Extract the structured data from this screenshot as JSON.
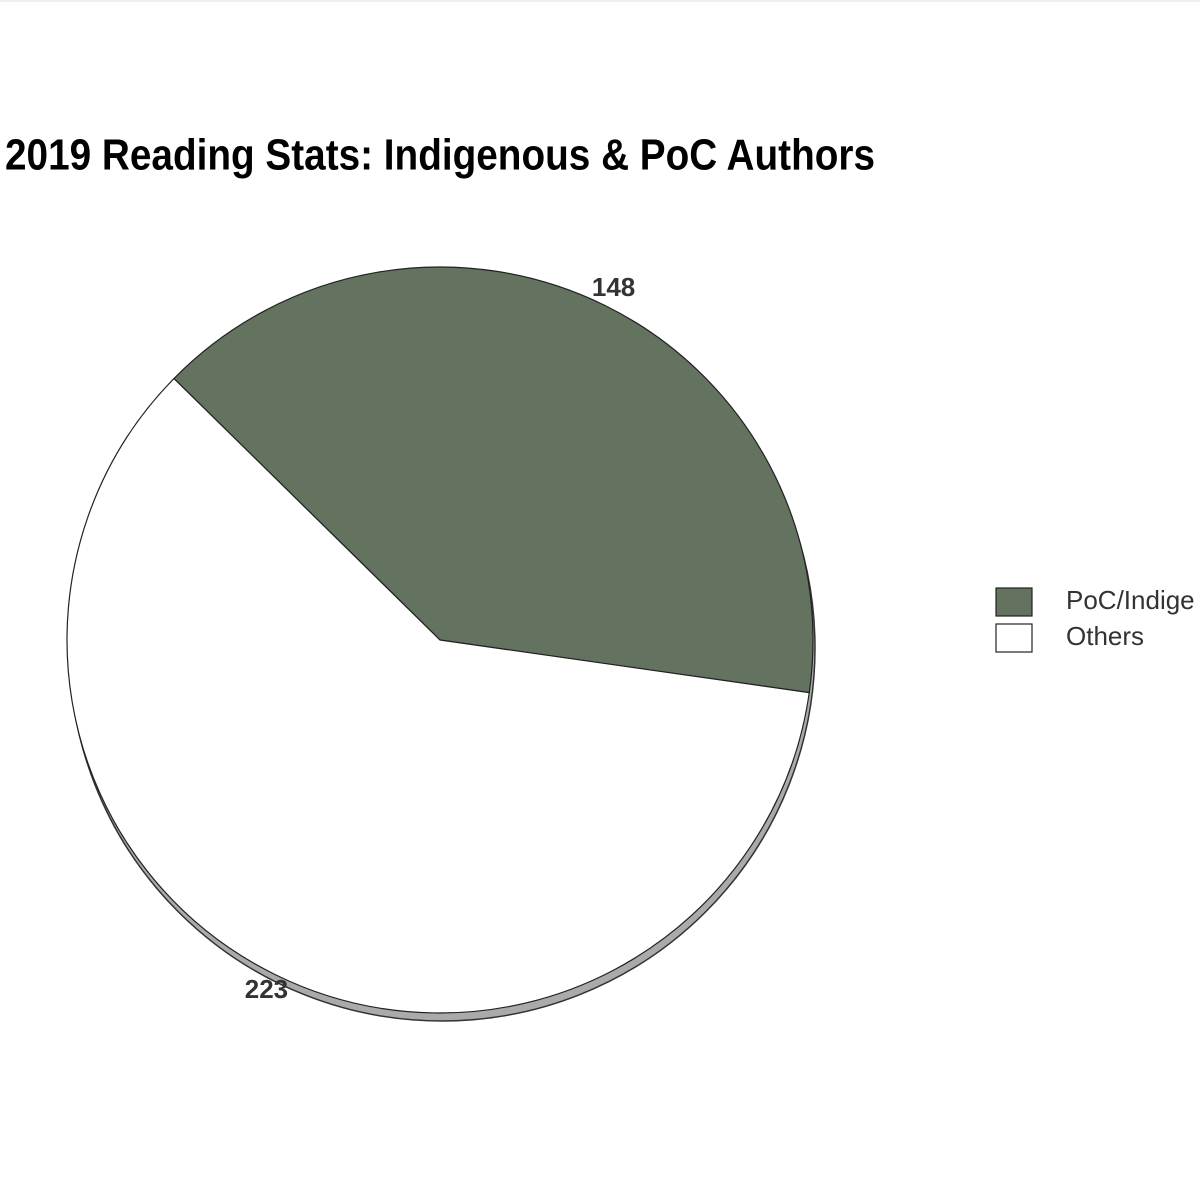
{
  "chart_data": {
    "type": "pie",
    "title": "2019 Reading Stats: Indigenous & PoC Authors",
    "categories": [
      "PoC/Indige",
      "Others"
    ],
    "values": [
      148,
      223
    ],
    "colors": [
      "#637360",
      "#ffffff"
    ]
  }
}
